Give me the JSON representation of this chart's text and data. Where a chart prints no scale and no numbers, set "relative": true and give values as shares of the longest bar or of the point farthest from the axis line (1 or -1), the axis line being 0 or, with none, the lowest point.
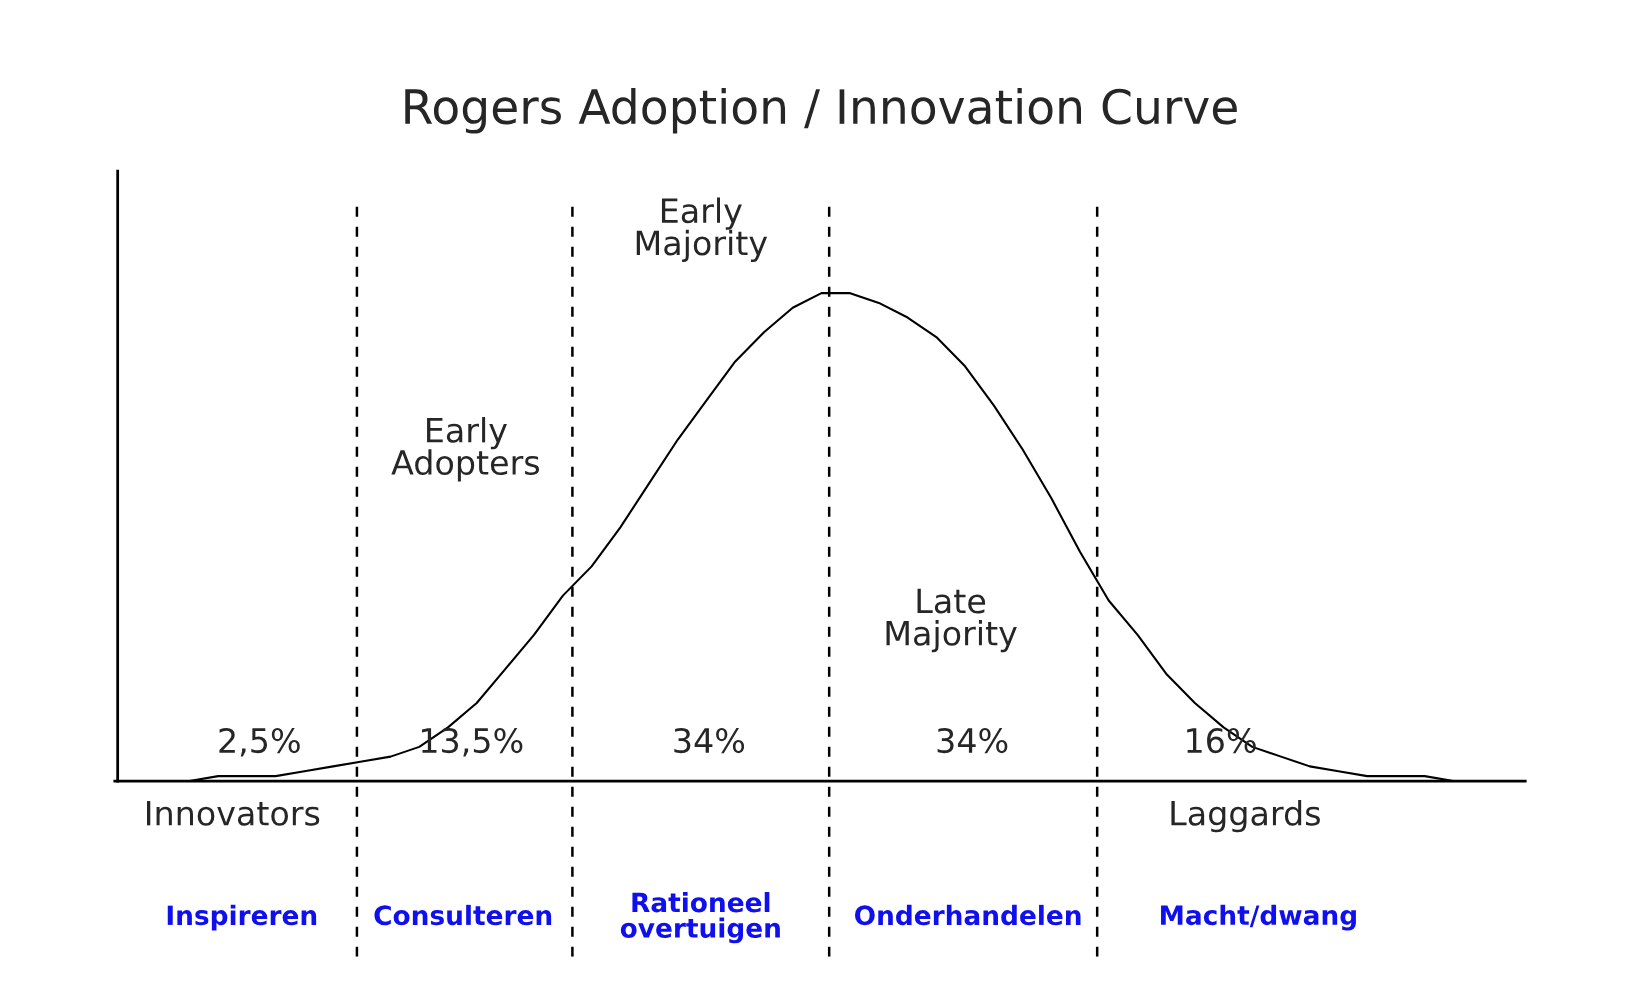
{
  "chart_data": {
    "type": "line",
    "title": "Rogers Adoption / Innovation Curve",
    "relative": true,
    "categories": [
      null,
      null,
      null,
      null,
      null,
      null,
      null,
      null,
      null,
      null,
      null,
      null,
      null,
      null,
      null,
      null,
      null,
      null,
      null,
      null,
      null,
      null,
      null,
      null,
      null,
      null,
      null,
      null,
      null,
      null,
      null,
      null,
      null,
      null,
      null,
      null,
      null,
      null,
      null,
      null,
      null,
      null,
      null,
      null,
      null,
      null,
      null,
      null
    ],
    "series": [
      {
        "color": "#000000",
        "values": [
          0,
          0,
          0.01,
          0.01,
          0.01,
          0.02,
          0.03,
          0.04,
          0.05,
          0.07,
          0.11,
          0.16,
          0.23,
          0.3,
          0.38,
          0.44,
          0.52,
          0.61,
          0.7,
          0.78,
          0.86,
          0.92,
          0.97,
          1.0,
          1.0,
          0.98,
          0.95,
          0.91,
          0.85,
          0.77,
          0.68,
          0.58,
          0.47,
          0.37,
          0.3,
          0.22,
          0.16,
          0.11,
          0.07,
          0.05,
          0.03,
          0.02,
          0.01,
          0.01,
          0.01,
          0,
          0,
          0
        ]
      }
    ],
    "marker": "none",
    "line_style": "solid",
    "grid": false,
    "annotations": [
      "Innovators",
      "2,5%",
      "Inspireren",
      "Early\nAdopters",
      "13,5%",
      "Consulteren",
      "Early\nMajority",
      "34%",
      "Rationeel\novertuigen",
      "Late\nMajority",
      "34%",
      "Onderhandelen",
      "Laggards",
      "16%",
      "Macht/dwang"
    ]
  }
}
